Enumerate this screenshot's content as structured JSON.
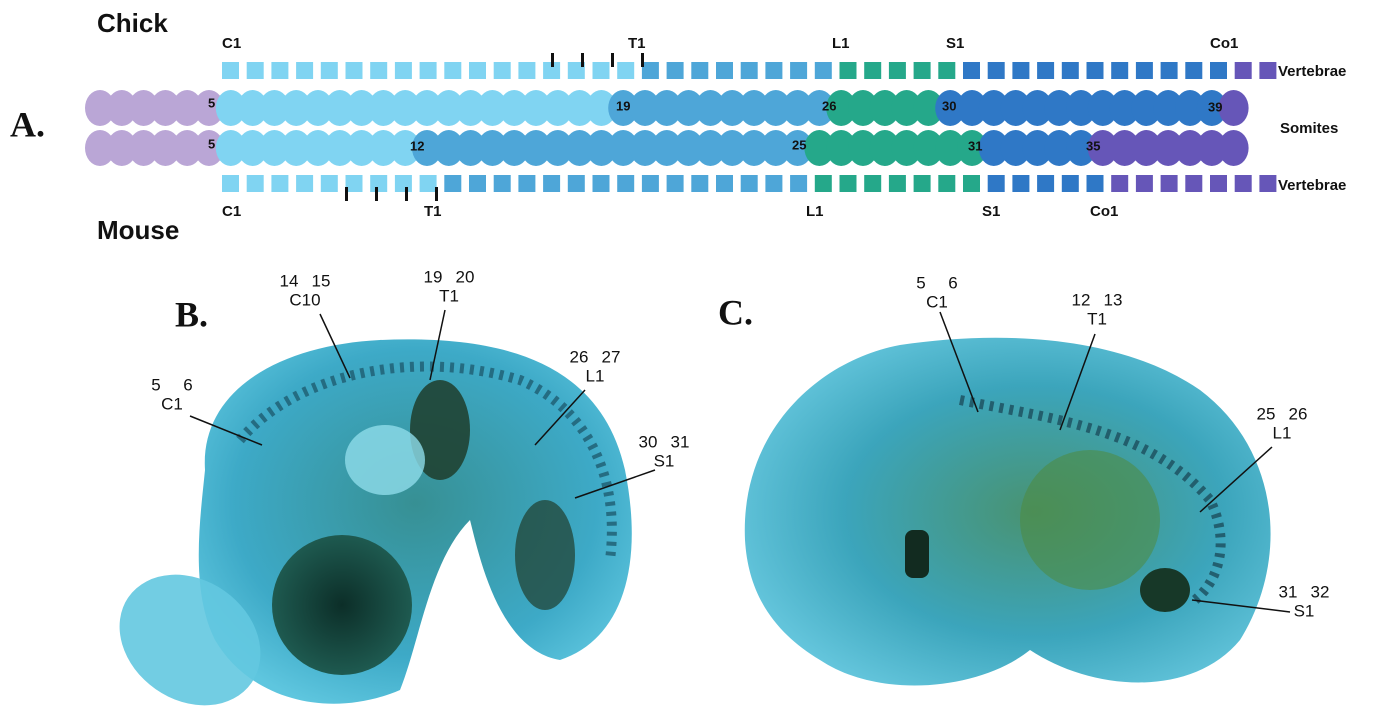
{
  "panel_a": {
    "label": "A.",
    "chick_title": "Chick",
    "mouse_title": "Mouse",
    "chick_vertebrae_labels": [
      "C1",
      "T1",
      "L1",
      "S1",
      "Co1"
    ],
    "mouse_vertebrae_labels": [
      "C1",
      "T1",
      "L1",
      "S1",
      "Co1"
    ],
    "row_labels": [
      "Vertebrae",
      "Somites",
      "Vertebrae"
    ],
    "chick_somite_numbers": [
      "5",
      "19",
      "26",
      "30",
      "39"
    ],
    "mouse_somite_numbers": [
      "5",
      "12",
      "25",
      "31",
      "35"
    ]
  },
  "panel_b": {
    "label": "B.",
    "annotations": [
      {
        "somites": [
          "5",
          "6"
        ],
        "vertebra": "C1"
      },
      {
        "somites": [
          "14",
          "15"
        ],
        "vertebra": "C10"
      },
      {
        "somites": [
          "19",
          "20"
        ],
        "vertebra": "T1"
      },
      {
        "somites": [
          "26",
          "27"
        ],
        "vertebra": "L1"
      },
      {
        "somites": [
          "30",
          "31"
        ],
        "vertebra": "S1"
      }
    ]
  },
  "panel_c": {
    "label": "C.",
    "annotations": [
      {
        "somites": [
          "5",
          "6"
        ],
        "vertebra": "C1"
      },
      {
        "somites": [
          "12",
          "13"
        ],
        "vertebra": "T1"
      },
      {
        "somites": [
          "25",
          "26"
        ],
        "vertebra": "L1"
      },
      {
        "somites": [
          "31",
          "32"
        ],
        "vertebra": "S1"
      }
    ]
  }
}
